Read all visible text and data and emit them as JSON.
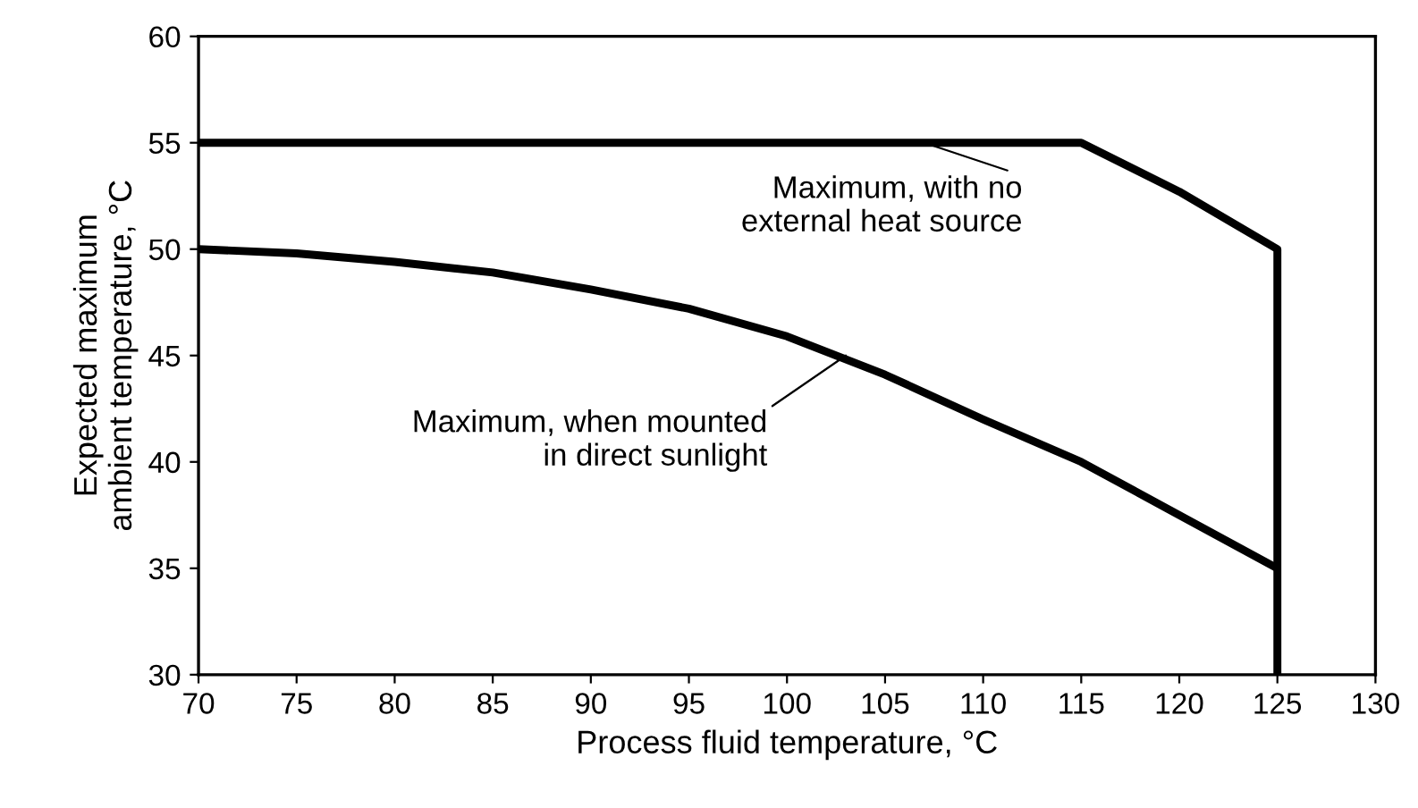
{
  "chart_data": {
    "type": "line",
    "xlabel": "Process fluid temperature, °C",
    "ylabel": "Expected maximum\nambient temperature, °C",
    "series": [
      {
        "color": "#000000",
        "x": [
          70,
          115,
          120,
          125,
          125
        ],
        "values": [
          55,
          55,
          52.7,
          50,
          30
        ]
      },
      {
        "color": "#000000",
        "x": [
          70,
          75,
          80,
          85,
          90,
          95,
          100,
          105,
          110,
          115,
          120,
          125
        ],
        "values": [
          50,
          49.8,
          49.4,
          48.9,
          48.1,
          47.2,
          45.9,
          44.1,
          42,
          40,
          37.5,
          35
        ]
      }
    ],
    "annotations": [
      {
        "text": "Maximum, with no\nexternal heat source",
        "x": 107,
        "y": 55
      },
      {
        "text": "Maximum, when mounted\nin direct sunlight",
        "x": 103,
        "y": 45
      }
    ],
    "xlim": [
      70,
      130
    ],
    "xticks": [
      70,
      75,
      80,
      85,
      90,
      95,
      100,
      105,
      110,
      115,
      120,
      125,
      130
    ],
    "ylim": [
      30,
      60
    ],
    "yticks": [
      30,
      35,
      40,
      45,
      50,
      55,
      60
    ],
    "grid": false,
    "legend": false,
    "marker": "none",
    "line_style": "solid"
  }
}
